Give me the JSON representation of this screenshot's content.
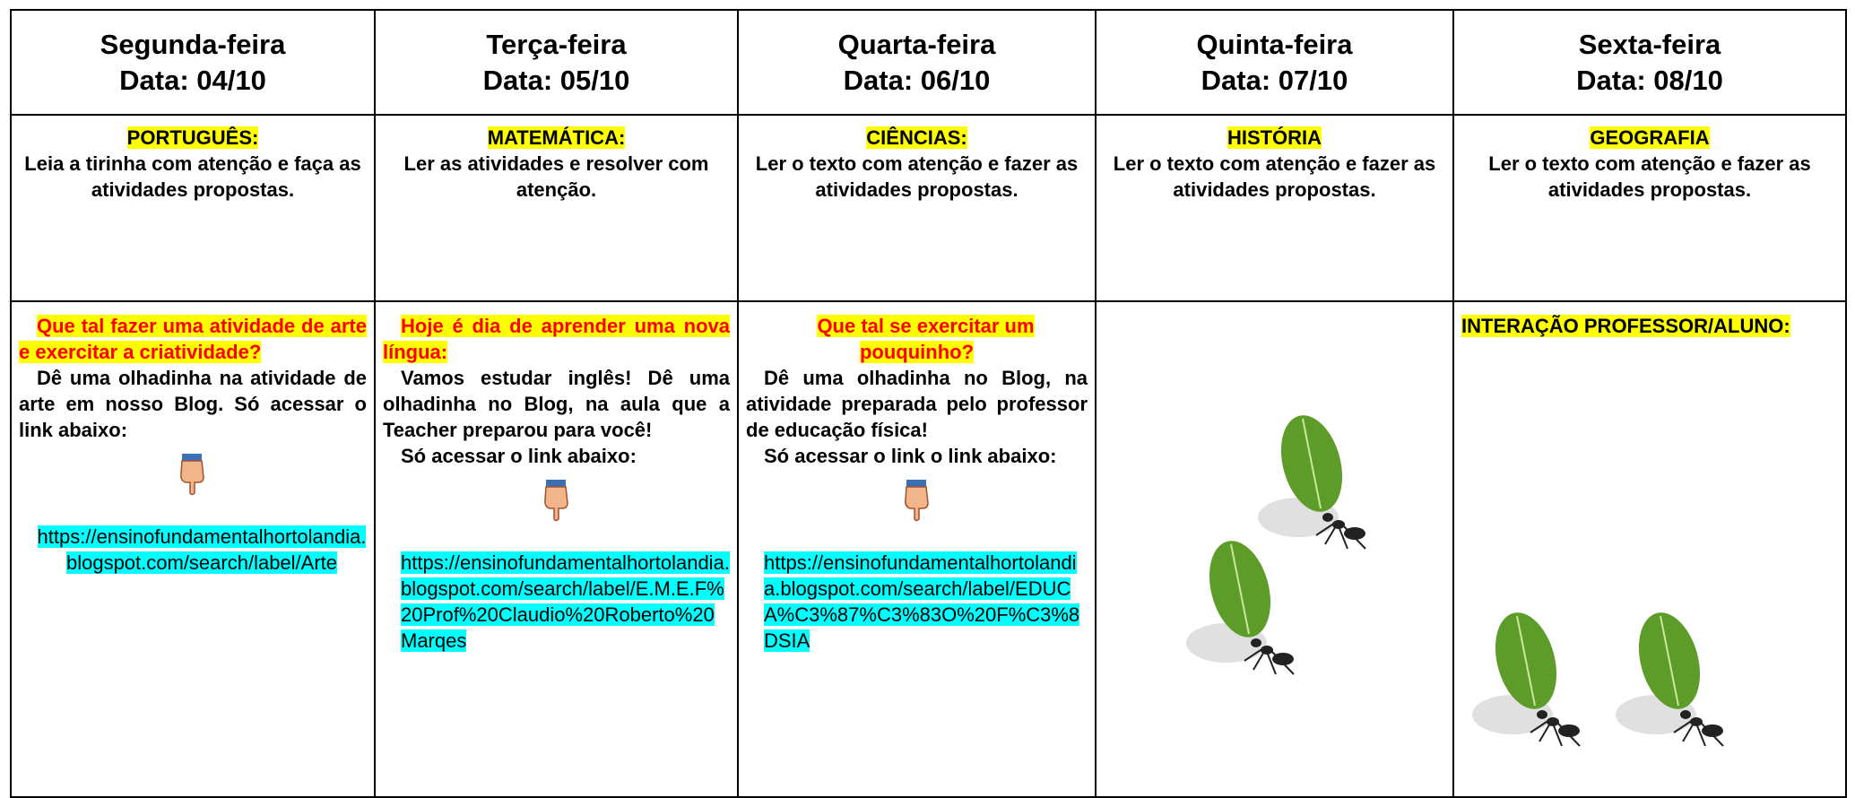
{
  "days": [
    {
      "day": "Segunda-feira",
      "date": "Data: 04/10",
      "subject": "PORTUGUÊS:",
      "task": "Leia a tirinha com atenção e faça as atividades propostas.",
      "heading": "Que tal fazer uma atividade de arte e exercitar a criatividade?",
      "body": [
        "Dê uma olhadinha na atividade de arte em nosso Blog. Só acessar o link abaixo:"
      ],
      "link": "https://ensinofundamentalhortolandia.blogspot.com/search/label/Arte"
    },
    {
      "day": "Terça-feira",
      "date": "Data: 05/10",
      "subject": "MATEMÁTICA:",
      "task": "Ler as atividades e resolver com atenção.",
      "heading": "Hoje é dia de aprender uma nova língua:",
      "body": [
        "Vamos estudar inglês! Dê uma olhadinha no Blog, na aula que a Teacher preparou para você!",
        "Só acessar o link abaixo:"
      ],
      "link": "https://ensinofundamentalhortolandia.blogspot.com/search/label/E.M.E.F%20Prof%20Claudio%20Roberto%20Marqes"
    },
    {
      "day": "Quarta-feira",
      "date": "Data: 06/10",
      "subject": "CIÊNCIAS:",
      "task": "Ler o texto com atenção e fazer as atividades propostas.",
      "heading": "Que tal se exercitar um pouquinho?",
      "body": [
        "Dê uma olhadinha no Blog, na atividade preparada pelo professor de educação física!",
        "Só acessar o link o link abaixo:"
      ],
      "link": "https://ensinofundamentalhortolandia.blogspot.com/search/label/EDUCA%C3%87%C3%83O%20F%C3%8DSIA"
    },
    {
      "day": "Quinta-feira",
      "date": "Data: 07/10",
      "subject": "HISTÓRIA",
      "task": "Ler o texto com atenção e fazer as atividades propostas."
    },
    {
      "day": "Sexta-feira",
      "date": "Data: 08/10",
      "subject": "GEOGRAFIA",
      "task": "Ler o texto com atenção e fazer as atividades propostas.",
      "heading": "INTERAÇÃO PROFESSOR/ALUNO:"
    }
  ]
}
